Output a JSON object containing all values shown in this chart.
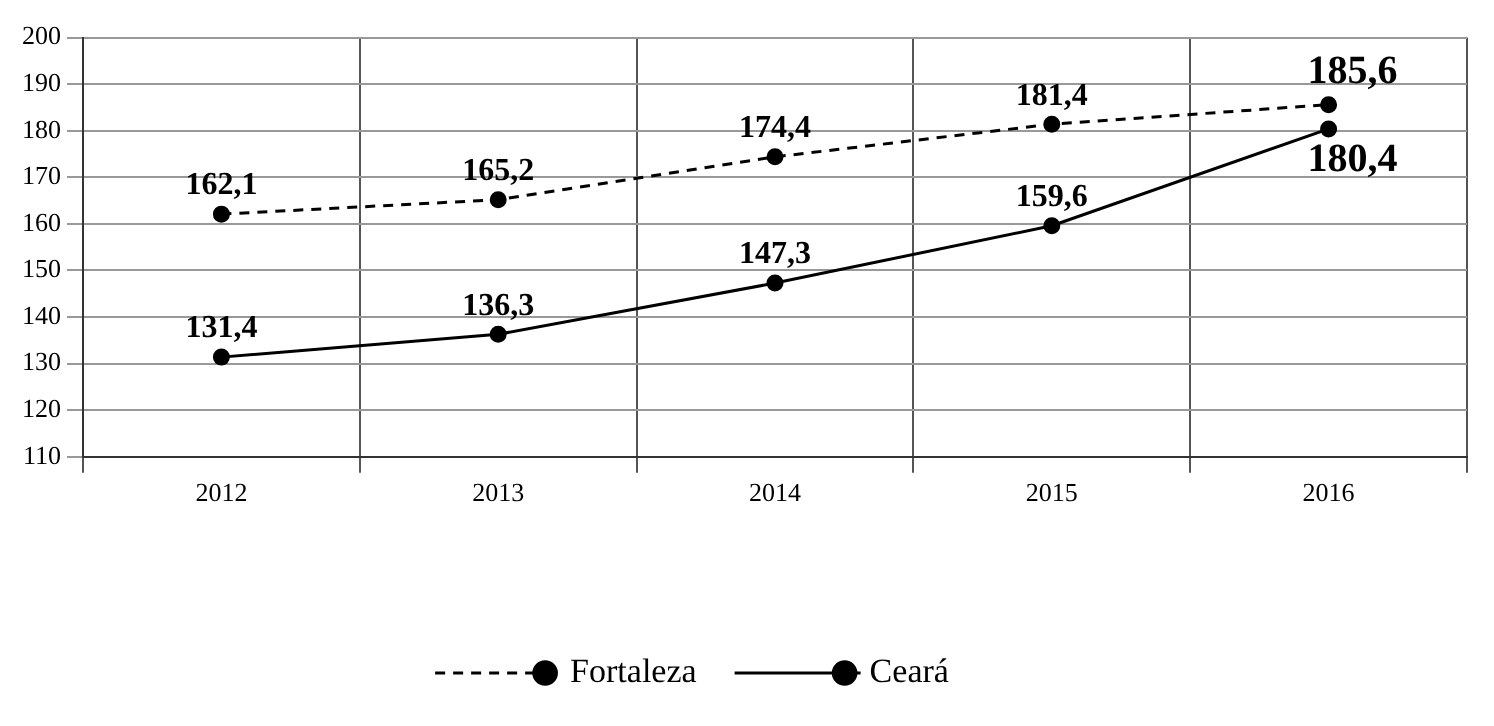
{
  "chart_data": {
    "type": "line",
    "categories": [
      "2012",
      "2013",
      "2014",
      "2015",
      "2016"
    ],
    "series": [
      {
        "name": "Fortaleza",
        "color": "#000000",
        "line_style": "dashed",
        "values": [
          162.1,
          165.2,
          174.4,
          181.4,
          185.6
        ],
        "value_labels": [
          "162,1",
          "165,2",
          "174,4",
          "181,4",
          "185,6"
        ]
      },
      {
        "name": "Ceará",
        "color": "#000000",
        "line_style": "solid",
        "values": [
          131.4,
          136.3,
          147.3,
          159.6,
          180.4
        ],
        "value_labels": [
          "131,4",
          "136,3",
          "147,3",
          "159,6",
          "180,4"
        ]
      }
    ],
    "ylim": [
      110,
      200
    ],
    "yticks": [
      110,
      120,
      130,
      140,
      150,
      160,
      170,
      180,
      190,
      200
    ],
    "grid": true,
    "legend": "bottom",
    "marker": "circle"
  }
}
